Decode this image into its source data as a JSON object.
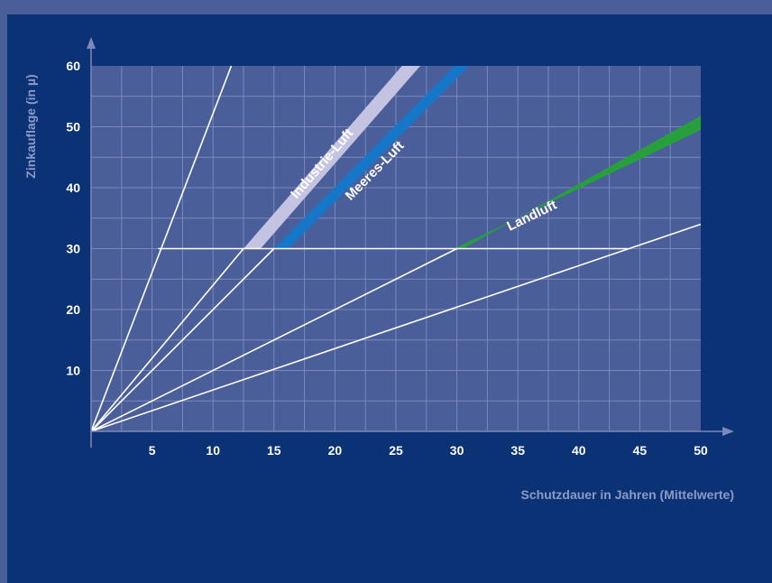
{
  "chart_data": {
    "type": "line",
    "xlabel": "Schutzdauer in Jahren (Mittelwerte)",
    "ylabel": "Zinkauflage (in µ)",
    "xlim": [
      0,
      50
    ],
    "ylim": [
      0,
      60
    ],
    "x_ticks": [
      5,
      10,
      15,
      20,
      25,
      30,
      35,
      40,
      45,
      50
    ],
    "y_ticks": [
      10,
      20,
      30,
      40,
      50,
      60
    ],
    "grid": true,
    "reference_lines": [
      {
        "x": [
          0,
          11.5
        ],
        "y": [
          0,
          60
        ]
      },
      {
        "x": [
          0,
          12.5
        ],
        "y": [
          0,
          30
        ]
      },
      {
        "x": [
          0,
          15
        ],
        "y": [
          0,
          30
        ]
      },
      {
        "x": [
          0,
          30
        ],
        "y": [
          0,
          30
        ]
      },
      {
        "x": [
          0,
          50
        ],
        "y": [
          0,
          34
        ]
      },
      {
        "x": [
          5.5,
          44
        ],
        "y": [
          30,
          30
        ]
      }
    ],
    "series": [
      {
        "name": "Industrie-Luft",
        "color": "#c4c4e2",
        "lower": {
          "x": [
            12.5,
            25.5
          ],
          "y": [
            30,
            60
          ]
        },
        "upper": {
          "x": [
            13.9,
            27
          ],
          "y": [
            30,
            60
          ]
        }
      },
      {
        "name": "Meeres-Luft",
        "color": "#1677c9",
        "lower": {
          "x": [
            15,
            29.8
          ],
          "y": [
            30,
            60
          ]
        },
        "upper": {
          "x": [
            16.2,
            31
          ],
          "y": [
            30,
            60
          ]
        }
      },
      {
        "name": "Landluft",
        "color": "#27a03c",
        "lower": {
          "x": [
            29.8,
            50
          ],
          "y": [
            30,
            49.5
          ]
        },
        "upper": {
          "x": [
            30.5,
            50
          ],
          "y": [
            30,
            51.8
          ]
        }
      }
    ],
    "colors": {
      "background": "#0a3274",
      "plot_area": "#4a5e99",
      "grid": "#7c88bb",
      "reference_lines": "#ffffff"
    }
  }
}
